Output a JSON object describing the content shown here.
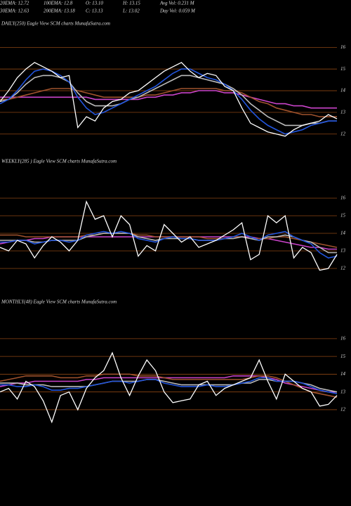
{
  "header": {
    "rows": [
      [
        "20EMA: 12.72",
        "100EMA: 12.8",
        "O: 13.10",
        "H: 13.15",
        "Avg Vol: 0.231 M"
      ],
      [
        "30EMA: 12.63",
        "200EMA: 13.18",
        "C: 13.13",
        "L: 13.02",
        "Day Vol: 0.059 M"
      ]
    ]
  },
  "chart_data": [
    {
      "type": "line",
      "title": "DAILY(250) Eagle  View  SCM charts MunafaSutra.com",
      "grid": true,
      "grid_color": "#8b4513",
      "categories": [
        null,
        null,
        null,
        null,
        null,
        null,
        null,
        null,
        null,
        null,
        null,
        null,
        null,
        null,
        null,
        null,
        null,
        null,
        null,
        null,
        null,
        null,
        null,
        null,
        null,
        null,
        null,
        null,
        null,
        null,
        null,
        null,
        null,
        null,
        null,
        null,
        null,
        null,
        null,
        null
      ],
      "ylim": [
        11.7,
        16.4
      ],
      "yticks": [
        12,
        13,
        14,
        15,
        16
      ],
      "series": [
        {
          "color": "#cc44cc",
          "values": [
            13.7,
            13.7,
            13.7,
            13.7,
            13.7,
            13.7,
            13.7,
            13.7,
            13.7,
            13.7,
            13.7,
            13.6,
            13.6,
            13.6,
            13.6,
            13.6,
            13.6,
            13.7,
            13.7,
            13.8,
            13.8,
            13.9,
            13.9,
            14.0,
            14.0,
            14.0,
            13.9,
            13.9,
            13.8,
            13.7,
            13.6,
            13.5,
            13.4,
            13.4,
            13.3,
            13.3,
            13.2,
            13.2,
            13.2,
            13.2
          ]
        },
        {
          "color": "#a0522d",
          "values": [
            13.6,
            13.6,
            13.7,
            13.8,
            13.9,
            14.0,
            14.1,
            14.1,
            14.1,
            14.0,
            13.9,
            13.8,
            13.7,
            13.7,
            13.7,
            13.7,
            13.7,
            13.8,
            13.8,
            13.9,
            14.0,
            14.1,
            14.1,
            14.1,
            14.1,
            14.1,
            14.0,
            14.0,
            13.9,
            13.7,
            13.5,
            13.4,
            13.2,
            13.1,
            13.0,
            12.9,
            12.9,
            12.8,
            12.8,
            12.8
          ]
        },
        {
          "color": "#bbbbbb",
          "values": [
            13.5,
            13.6,
            13.9,
            14.3,
            14.6,
            14.7,
            14.7,
            14.6,
            14.4,
            13.9,
            13.5,
            13.3,
            13.3,
            13.3,
            13.4,
            13.6,
            13.7,
            13.9,
            14.1,
            14.3,
            14.5,
            14.7,
            14.7,
            14.6,
            14.5,
            14.4,
            14.3,
            14.1,
            13.8,
            13.4,
            13.1,
            12.8,
            12.6,
            12.4,
            12.4,
            12.4,
            12.5,
            12.5,
            12.6,
            12.6
          ]
        },
        {
          "color": "#2255dd",
          "values": [
            13.4,
            13.6,
            14.0,
            14.5,
            14.9,
            15.0,
            14.9,
            14.7,
            14.4,
            13.7,
            13.2,
            12.9,
            13.0,
            13.2,
            13.4,
            13.6,
            13.8,
            14.0,
            14.2,
            14.5,
            14.8,
            15.0,
            15.0,
            14.8,
            14.6,
            14.5,
            14.3,
            14.0,
            13.6,
            13.1,
            12.7,
            12.4,
            12.2,
            12.0,
            12.1,
            12.2,
            12.4,
            12.5,
            12.6,
            12.6
          ]
        },
        {
          "color": "#ffffff",
          "values": [
            13.5,
            14.0,
            14.6,
            15.0,
            15.3,
            15.1,
            14.9,
            14.6,
            14.7,
            12.3,
            12.8,
            12.6,
            13.2,
            13.5,
            13.6,
            13.9,
            14.0,
            14.3,
            14.6,
            14.9,
            15.1,
            15.3,
            14.9,
            14.6,
            14.8,
            14.7,
            14.2,
            14.0,
            13.2,
            12.5,
            12.3,
            12.1,
            12.0,
            11.9,
            12.2,
            12.4,
            12.5,
            12.6,
            12.9,
            12.7
          ]
        }
      ]
    },
    {
      "type": "line",
      "title": "WEEKLY(285             ) Eagle  View  SCM charts MunafaSutra.com",
      "grid": true,
      "grid_color": "#8b4513",
      "categories": [
        null,
        null,
        null,
        null,
        null,
        null,
        null,
        null,
        null,
        null,
        null,
        null,
        null,
        null,
        null,
        null,
        null,
        null,
        null,
        null,
        null,
        null,
        null,
        null,
        null,
        null,
        null,
        null,
        null,
        null,
        null,
        null,
        null,
        null,
        null,
        null,
        null,
        null,
        null,
        null
      ],
      "ylim": [
        11.28,
        16.48
      ],
      "yticks": [
        12,
        13,
        14,
        15,
        16
      ],
      "series": [
        {
          "color": "#cc44cc",
          "values": [
            13.4,
            13.5,
            13.6,
            13.6,
            13.7,
            13.7,
            13.8,
            13.8,
            13.8,
            13.8,
            13.8,
            13.8,
            13.8,
            13.8,
            13.8,
            13.8,
            13.8,
            13.8,
            13.8,
            13.8,
            13.8,
            13.8,
            13.8,
            13.8,
            13.8,
            13.8,
            13.8,
            13.8,
            13.8,
            13.8,
            13.7,
            13.7,
            13.6,
            13.5,
            13.4,
            13.3,
            13.2,
            13.2,
            13.1,
            13.1
          ]
        },
        {
          "color": "#a0522d",
          "values": [
            13.9,
            13.9,
            13.9,
            13.8,
            13.8,
            13.8,
            13.8,
            13.8,
            13.8,
            13.8,
            13.9,
            13.9,
            14.0,
            14.0,
            14.0,
            14.0,
            13.9,
            13.9,
            13.8,
            13.8,
            13.8,
            13.8,
            13.8,
            13.8,
            13.7,
            13.7,
            13.7,
            13.8,
            13.8,
            13.7,
            13.7,
            13.7,
            13.8,
            13.8,
            13.7,
            13.6,
            13.5,
            13.4,
            13.3,
            13.2
          ]
        },
        {
          "color": "#bbbbbb",
          "values": [
            13.6,
            13.6,
            13.6,
            13.6,
            13.5,
            13.5,
            13.6,
            13.6,
            13.6,
            13.6,
            13.8,
            13.9,
            14.0,
            14.0,
            14.0,
            14.0,
            13.8,
            13.7,
            13.6,
            13.7,
            13.7,
            13.7,
            13.7,
            13.6,
            13.6,
            13.6,
            13.7,
            13.7,
            13.8,
            13.7,
            13.6,
            13.8,
            13.8,
            13.9,
            13.8,
            13.6,
            13.5,
            13.2,
            12.9,
            12.9
          ]
        },
        {
          "color": "#2255dd",
          "values": [
            13.5,
            13.5,
            13.6,
            13.6,
            13.4,
            13.5,
            13.6,
            13.6,
            13.5,
            13.6,
            13.9,
            14.0,
            14.1,
            14.0,
            14.1,
            14.0,
            13.7,
            13.6,
            13.5,
            13.7,
            13.8,
            13.7,
            13.7,
            13.6,
            13.6,
            13.6,
            13.7,
            13.8,
            14.0,
            13.8,
            13.6,
            13.9,
            14.0,
            14.1,
            13.8,
            13.6,
            13.4,
            12.9,
            12.6,
            12.7
          ]
        },
        {
          "color": "#ffffff",
          "values": [
            13.2,
            13.0,
            13.6,
            13.4,
            12.6,
            13.3,
            13.8,
            13.5,
            13.0,
            13.6,
            15.8,
            14.8,
            15.0,
            13.8,
            15.0,
            14.5,
            12.7,
            13.3,
            13.0,
            14.5,
            14.0,
            13.5,
            13.8,
            13.2,
            13.4,
            13.6,
            13.9,
            14.2,
            14.6,
            12.5,
            12.8,
            15.0,
            14.6,
            15.0,
            12.6,
            13.2,
            12.9,
            11.9,
            12.0,
            12.8
          ]
        }
      ]
    },
    {
      "type": "line",
      "title": "MONTHLY(48) Eagle  View  SCM charts MunafaSutra.com",
      "grid": true,
      "grid_color": "#8b4513",
      "categories": [
        null,
        null,
        null,
        null,
        null,
        null,
        null,
        null,
        null,
        null,
        null,
        null,
        null,
        null,
        null,
        null,
        null,
        null,
        null,
        null,
        null,
        null,
        null,
        null,
        null,
        null,
        null,
        null,
        null,
        null,
        null,
        null,
        null,
        null,
        null,
        null,
        null,
        null,
        null,
        null
      ],
      "ylim": [
        10.93,
        16.47
      ],
      "yticks": [
        12,
        13,
        14,
        15,
        16
      ],
      "series": [
        {
          "color": "#cc44cc",
          "values": [
            13.3,
            13.4,
            13.5,
            13.5,
            13.6,
            13.6,
            13.6,
            13.6,
            13.6,
            13.6,
            13.7,
            13.7,
            13.8,
            13.8,
            13.8,
            13.8,
            13.8,
            13.8,
            13.8,
            13.8,
            13.8,
            13.8,
            13.8,
            13.8,
            13.8,
            13.8,
            13.8,
            13.9,
            13.9,
            13.9,
            13.9,
            13.8,
            13.7,
            13.5,
            13.4,
            13.3,
            13.2,
            13.1,
            13.0,
            13.0
          ]
        },
        {
          "color": "#a0522d",
          "values": [
            13.6,
            13.7,
            13.8,
            13.9,
            13.9,
            13.9,
            13.9,
            13.8,
            13.8,
            13.8,
            13.9,
            13.9,
            14.0,
            14.0,
            14.0,
            14.0,
            13.9,
            13.9,
            13.9,
            13.8,
            13.7,
            13.7,
            13.7,
            13.7,
            13.7,
            13.7,
            13.7,
            13.7,
            13.7,
            13.8,
            13.9,
            13.9,
            13.8,
            13.6,
            13.4,
            13.2,
            13.0,
            12.9,
            12.8,
            12.7
          ]
        },
        {
          "color": "#bbbbbb",
          "values": [
            13.5,
            13.5,
            13.5,
            13.4,
            13.4,
            13.4,
            13.3,
            13.3,
            13.3,
            13.3,
            13.3,
            13.4,
            13.5,
            13.6,
            13.6,
            13.6,
            13.6,
            13.7,
            13.7,
            13.6,
            13.5,
            13.4,
            13.4,
            13.4,
            13.4,
            13.4,
            13.4,
            13.4,
            13.5,
            13.5,
            13.7,
            13.7,
            13.6,
            13.6,
            13.6,
            13.5,
            13.4,
            13.2,
            13.1,
            13.0
          ]
        },
        {
          "color": "#2255dd",
          "values": [
            13.4,
            13.4,
            13.3,
            13.3,
            13.4,
            13.3,
            13.1,
            13.1,
            13.2,
            13.2,
            13.3,
            13.4,
            13.5,
            13.6,
            13.6,
            13.5,
            13.6,
            13.7,
            13.7,
            13.5,
            13.4,
            13.3,
            13.3,
            13.3,
            13.4,
            13.3,
            13.3,
            13.4,
            13.5,
            13.6,
            13.8,
            13.8,
            13.6,
            13.6,
            13.6,
            13.5,
            13.3,
            13.1,
            13.0,
            12.9
          ]
        },
        {
          "color": "#ffffff",
          "values": [
            13.0,
            13.2,
            12.6,
            13.6,
            13.3,
            12.5,
            11.3,
            12.8,
            13.0,
            12.0,
            13.2,
            13.8,
            14.2,
            15.2,
            13.8,
            12.8,
            13.9,
            14.8,
            14.2,
            13.0,
            12.4,
            12.5,
            12.6,
            13.4,
            13.6,
            12.8,
            13.2,
            13.4,
            13.6,
            13.8,
            14.8,
            13.6,
            12.6,
            14.0,
            13.6,
            13.2,
            13.0,
            12.2,
            12.3,
            12.8
          ]
        }
      ]
    }
  ]
}
